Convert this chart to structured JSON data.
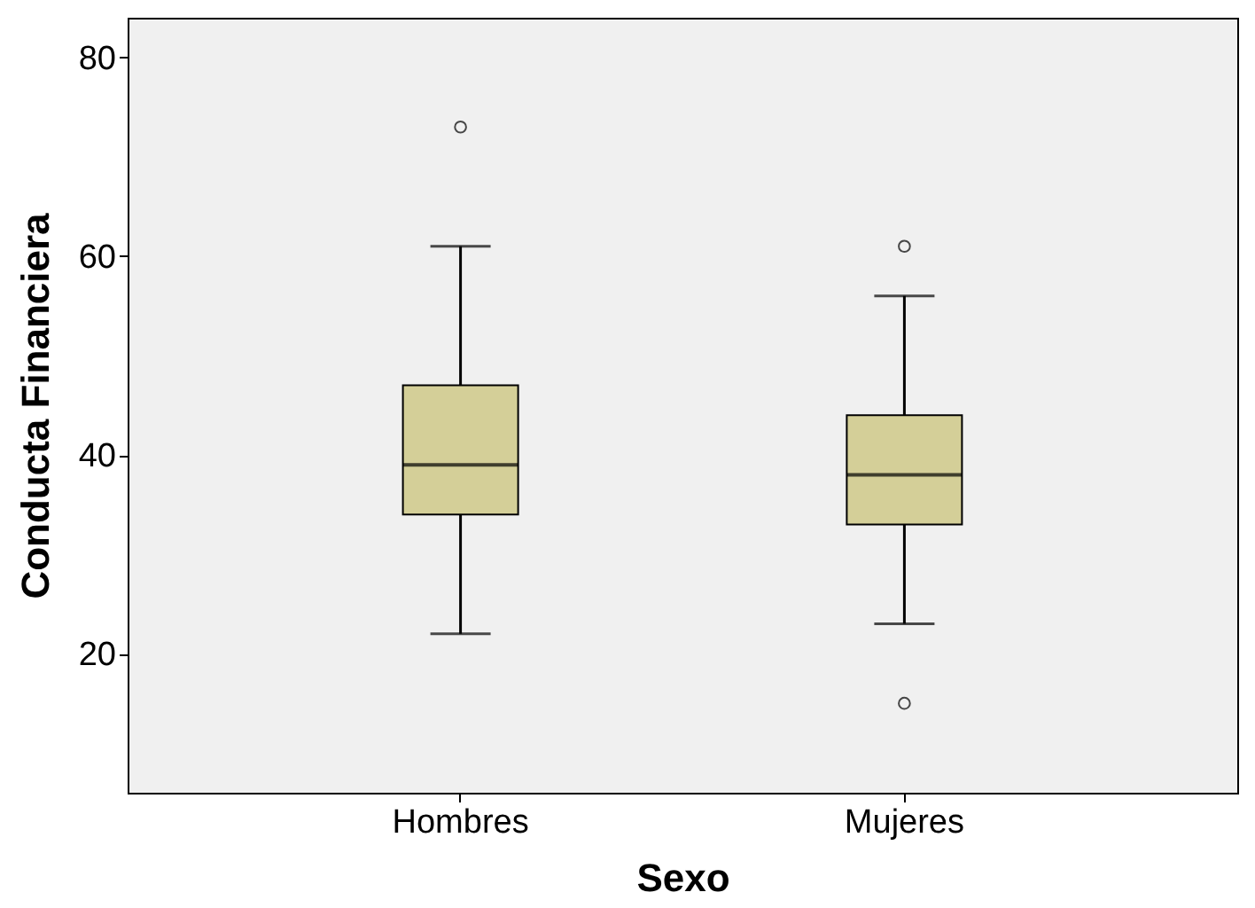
{
  "chart_data": {
    "type": "box",
    "xlabel": "Sexo",
    "ylabel": "Conducta Financiera",
    "categories": [
      "Hombres",
      "Mujeres"
    ],
    "boxes": [
      {
        "low": 22,
        "q1": 34,
        "median": 39,
        "q3": 47,
        "high": 61,
        "outliers": [
          73
        ]
      },
      {
        "low": 23,
        "q1": 33,
        "median": 38,
        "q3": 44,
        "high": 56,
        "outliers": [
          61,
          15
        ]
      }
    ],
    "color": "#d4cf98",
    "ylim": [
      6,
      84
    ],
    "yticks": [
      20,
      40,
      60,
      80
    ],
    "grid": false
  }
}
